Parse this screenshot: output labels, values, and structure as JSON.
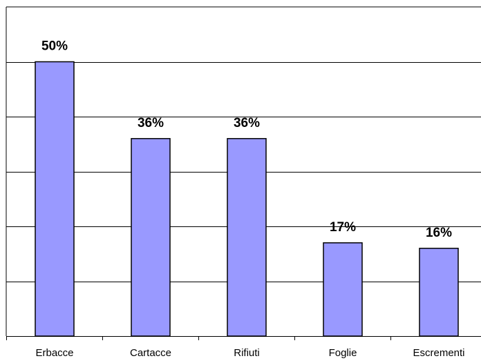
{
  "chart_data": {
    "type": "bar",
    "title": "",
    "xlabel": "",
    "ylabel": "",
    "categories": [
      "Erbacce",
      "Cartacce",
      "Rifiuti",
      "Foglie",
      "Escrementi"
    ],
    "values": [
      50,
      36,
      36,
      17,
      16
    ],
    "data_labels": [
      "50%",
      "36%",
      "36%",
      "17%",
      "16%"
    ],
    "unit": "%",
    "ylim": [
      0,
      60
    ],
    "y_gridlines": [
      10,
      20,
      30,
      40,
      50
    ],
    "grid": true,
    "legend": "none",
    "bar_color": "#9999FF",
    "bar_edge_color": "#000000"
  }
}
